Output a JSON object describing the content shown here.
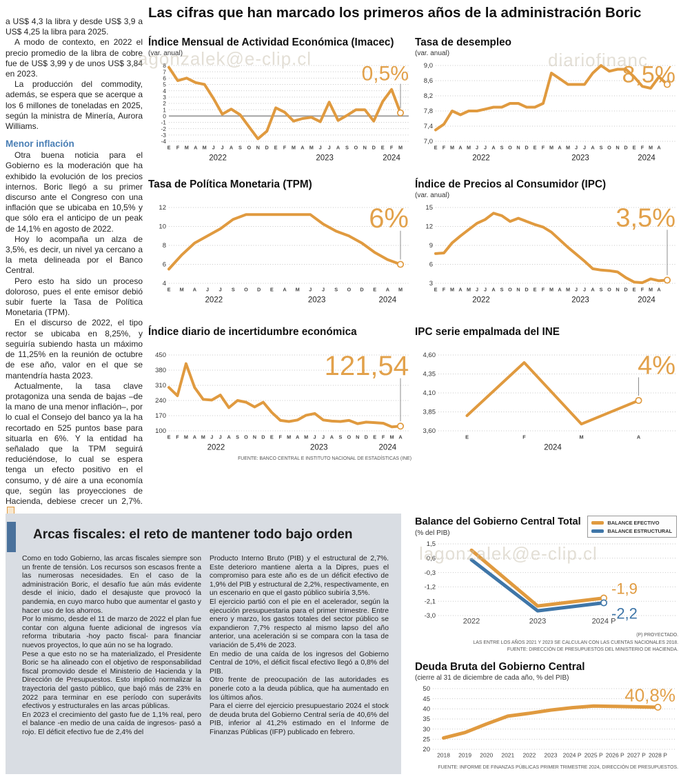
{
  "headline": "Las cifras que han marcado los primeros años de la administración Boric",
  "watermarks": [
    "agonzalek@e-clip.cl",
    "diariofinanc",
    "lagonzalek@e-clip.cl"
  ],
  "left_article": {
    "paragraphs": [
      "a US$ 4,3 la libra y desde US$ 3,9 a US$ 4,25 la libra para 2025.",
      "A modo de contexto, en 2022 el precio promedio de la libra de cobre fue de US$ 3,99 y de unos US$ 3,84 en 2023.",
      "La producción del commodity, además, se espera que se acerque a los 6 millones de toneladas en 2025, según la ministra de Minería, Aurora Williams."
    ],
    "subhead": "Menor inflación",
    "paragraphs2": [
      "Otra buena noticia para el Gobierno es la moderación que ha exhibido la evolución de los precios internos. Boric llegó a su primer discurso ante el Congreso con una inflación que se ubicaba en 10,5% y que sólo era el anticipo de un peak de 14,1% en agosto de 2022.",
      "Hoy lo acompaña un alza de 3,5%, es decir, un nivel ya cercano a la meta delineada por el Banco Central.",
      "Pero esto ha sido un proceso doloroso, pues el ente emisor debió subir fuerte la Tasa de Política Monetaria (TPM).",
      "En el discurso de 2022, el tipo rector se ubicaba en 8,25%, y seguiría subiendo hasta un máximo de 11,25% en la reunión de octubre de ese año, valor en el que se mantendría hasta 2023.",
      "Actualmente, la tasa clave protagoniza una senda de bajas –de la mano de una menor inflación–, por lo cual el Consejo del banco ya la ha recortado en 525 puntos base para situarla en 6%. Y la entidad ha señalado que la TPM seguirá reduciéndose, lo cual se espera tenga un efecto positivo en el consumo, y dé aire a una economía que, según las proyecciones de Hacienda, debiese crecer un 2,7%."
    ]
  },
  "fiscal": {
    "title": "Arcas fiscales: el reto de mantener todo bajo orden",
    "col1": [
      "Como en todo Gobierno, las arcas fiscales siempre son un frente de tensión. Los recursos son escasos frente a las numerosas necesidades. En el caso de la administración Boric, el desafío fue aún más evidente desde el inicio, dado el desajuste que provocó la pandemia, en cuyo marco hubo que aumentar el gasto y hacer uso de los ahorros.",
      "Por lo mismo, desde el 11 de marzo de 2022 el plan fue contar con alguna fuente adicional de ingresos vía reforma tributaria -hoy pacto fiscal- para financiar nuevos proyectos, lo que aún no se ha logrado.",
      "Pese a que esto no se ha materializado, el Presidente Boric se ha alineado con el objetivo de responsabilidad fiscal promovido desde el Ministerio de Hacienda y la Dirección de Presupuestos. Esto implicó normalizar la trayectoria del gasto público, que bajó más de 23% en 2022 para terminar en ese período con superávits efectivos y estructurales en las arcas públicas.",
      "En 2023 el crecimiento del gasto fue de 1,1% real, pero el balance -en medio de una caída de ingresos- pasó a rojo. El déficit efectivo fue de 2,4% del"
    ],
    "col2": [
      "Producto Interno Bruto (PIB) y el estructural de 2,7%. Este deterioro mantiene alerta a la Dipres, pues el compromiso para este año es de un déficit efectivo de 1,9% del PIB y estructural de 2,2%, respectivamente, en un escenario en que el gasto público subiría 3,5%.",
      "El ejercicio partió con el pie en el acelerador, según la ejecución presupuestaria para el primer trimestre. Entre enero y marzo, los gastos totales del sector público se expandieron 7,7% respecto al mismo lapso del año anterior, una aceleración si se compara con la tasa de variación de 5,4% de 2023.",
      "En medio de una caída de los ingresos del Gobierno Central de 10%, el déficit fiscal efectivo llegó a 0,8% del PIB.",
      "Otro frente de preocupación de las autoridades es ponerle coto a la deuda pública, que ha aumentado en los últimos años.",
      "Para el cierre del ejercicio presupuestario 2024 el stock de deuda bruta del Gobierno Central sería de 40,6% del PIB, inferior al 41,2% estimado en el Informe de Finanzas Públicas (IFP) publicado en febrero."
    ]
  },
  "colors": {
    "accent_orange": "#E09A3F",
    "accent_blue": "#3F76A8",
    "value_orange": "#E2A14B",
    "subhead_blue": "#4a7fb5"
  },
  "chart_data": [
    {
      "type": "line",
      "title": "Índice Mensual de Actividad Económica (Imacec)",
      "subtitle": "(var. anual)",
      "value": "0,5%",
      "ylim": [
        -4,
        8
      ],
      "yticks": [
        "8",
        "7",
        "6",
        "5",
        "4",
        "3",
        "2",
        "1",
        "0",
        "-1",
        "-2",
        "-3",
        "-4"
      ],
      "zero_line": true,
      "xlabels": [
        "E",
        "F",
        "M",
        "A",
        "M",
        "J",
        "J",
        "A",
        "S",
        "O",
        "N",
        "D",
        "E",
        "F",
        "M",
        "A",
        "M",
        "J",
        "J",
        "A",
        "S",
        "O",
        "N",
        "D",
        "E",
        "F",
        "M"
      ],
      "years": [
        {
          "label": "2022",
          "center": 5.5
        },
        {
          "label": "2023",
          "center": 17.5
        },
        {
          "label": "2024",
          "center": 25
        }
      ],
      "series": [
        {
          "name": "Imacec",
          "color": "#E09A3F",
          "values": [
            7.7,
            5.6,
            6.0,
            5.3,
            5.0,
            2.8,
            0.3,
            1.1,
            0.2,
            -1.7,
            -3.6,
            -2.4,
            1.3,
            0.6,
            -0.8,
            -0.4,
            -0.2,
            -0.9,
            2.2,
            -0.7,
            0.1,
            1.0,
            1.0,
            -0.8,
            2.3,
            4.2,
            0.5
          ]
        }
      ],
      "layout": {
        "vsize": 30,
        "ysize": 8.5
      }
    },
    {
      "type": "line",
      "title": "Tasa de desempleo",
      "subtitle": "(var. anual)",
      "value": "8,5%",
      "ylim": [
        7.0,
        9.0
      ],
      "yticks": [
        "9,0",
        "8,6",
        "8,2",
        "7,8",
        "7,4",
        "7,0"
      ],
      "xlabels": [
        "E",
        "F",
        "M",
        "A",
        "M",
        "J",
        "J",
        "A",
        "S",
        "O",
        "N",
        "D",
        "E",
        "F",
        "M",
        "A",
        "M",
        "J",
        "J",
        "A",
        "S",
        "O",
        "N",
        "D",
        "E",
        "F",
        "M",
        "A",
        ""
      ],
      "years": [
        {
          "label": "2022",
          "center": 5.5
        },
        {
          "label": "2023",
          "center": 17.5
        },
        {
          "label": "2024",
          "center": 25.5
        }
      ],
      "series": [
        {
          "name": "Tasa de desempleo",
          "color": "#E09A3F",
          "values": [
            7.3,
            7.45,
            7.8,
            7.7,
            7.8,
            7.8,
            7.85,
            7.9,
            7.9,
            8.0,
            8.0,
            7.9,
            7.9,
            8.0,
            8.8,
            8.65,
            8.5,
            8.5,
            8.5,
            8.8,
            9.0,
            8.85,
            8.9,
            8.9,
            8.7,
            8.45,
            8.4,
            8.7,
            8.5
          ]
        }
      ],
      "layout": {
        "vsize": 34
      }
    },
    {
      "type": "line",
      "title": "Tasa de Política Monetaria (TPM)",
      "subtitle": "",
      "value": "6%",
      "ylim": [
        4,
        12
      ],
      "yticks": [
        "12",
        "10",
        "8",
        "6",
        "4"
      ],
      "xlabels": [
        "E",
        "M",
        "A",
        "J",
        "J",
        "S",
        "O",
        "D",
        "E",
        "A",
        "M",
        "J",
        "J",
        "S",
        "O",
        "D",
        "E",
        "A",
        "M"
      ],
      "years": [
        {
          "label": "2022",
          "center": 3.5
        },
        {
          "label": "2023",
          "center": 11.5
        },
        {
          "label": "2024",
          "center": 17
        }
      ],
      "series": [
        {
          "name": "TPM",
          "color": "#E09A3F",
          "values": [
            5.5,
            7.0,
            8.25,
            9.0,
            9.75,
            10.75,
            11.25,
            11.25,
            11.25,
            11.25,
            11.25,
            11.25,
            10.25,
            9.5,
            9.0,
            8.25,
            7.25,
            6.5,
            6.0
          ]
        }
      ],
      "layout": {
        "vsize": 40
      }
    },
    {
      "type": "line",
      "title": "Índice de Precios al Consumidor (IPC)",
      "subtitle": "(var. anual)",
      "value": "3,5%",
      "ylim": [
        3,
        15
      ],
      "yticks": [
        "15",
        "12",
        "9",
        "6",
        "3"
      ],
      "xlabels": [
        "E",
        "F",
        "M",
        "A",
        "M",
        "J",
        "J",
        "A",
        "S",
        "O",
        "N",
        "D",
        "E",
        "F",
        "M",
        "A",
        "M",
        "J",
        "J",
        "A",
        "S",
        "O",
        "N",
        "D",
        "E",
        "F",
        "M",
        "A",
        ""
      ],
      "years": [
        {
          "label": "2022",
          "center": 5.5
        },
        {
          "label": "2023",
          "center": 17.5
        },
        {
          "label": "2024",
          "center": 25.5
        }
      ],
      "series": [
        {
          "name": "IPC",
          "color": "#E09A3F",
          "values": [
            7.7,
            7.8,
            9.4,
            10.5,
            11.5,
            12.5,
            13.1,
            14.1,
            13.7,
            12.8,
            13.3,
            12.8,
            12.3,
            11.9,
            11.1,
            9.9,
            8.7,
            7.6,
            6.5,
            5.3,
            5.1,
            5.0,
            4.8,
            3.9,
            3.2,
            3.1,
            3.7,
            3.4,
            3.5
          ]
        }
      ],
      "layout": {
        "vsize": 38
      }
    },
    {
      "type": "line",
      "title": "Índice diario de incertidumbre económica",
      "subtitle": "",
      "value": "121,54",
      "source": "FUENTE: BANCO CENTRAL E INSTITUTO NACIONAL DE ESTADÍSTICAS (INE)",
      "ylim": [
        100,
        450
      ],
      "yticks": [
        "450",
        "380",
        "310",
        "240",
        "170",
        "100"
      ],
      "xlabels": [
        "E",
        "F",
        "M",
        "A",
        "M",
        "J",
        "J",
        "A",
        "S",
        "O",
        "N",
        "D",
        "E",
        "F",
        "M",
        "A",
        "M",
        "J",
        "J",
        "A",
        "S",
        "O",
        "N",
        "D",
        "E",
        "F",
        "M",
        "A"
      ],
      "years": [
        {
          "label": "2022",
          "center": 5.5
        },
        {
          "label": "2023",
          "center": 17.5
        },
        {
          "label": "2024",
          "center": 25.5
        }
      ],
      "series": [
        {
          "name": "Incertidumbre económica",
          "color": "#E09A3F",
          "values": [
            300,
            262,
            410,
            300,
            245,
            242,
            265,
            207,
            240,
            232,
            210,
            232,
            185,
            148,
            143,
            150,
            172,
            180,
            150,
            145,
            143,
            148,
            133,
            140,
            138,
            135,
            118,
            121.54
          ]
        }
      ],
      "layout": {
        "vsize": 40
      }
    },
    {
      "type": "line",
      "title": "IPC serie empalmada del INE",
      "subtitle": "",
      "value": "4%",
      "ylim": [
        3.6,
        4.6
      ],
      "yticks": [
        "4,60",
        "4,35",
        "4,10",
        "3,85",
        "3,60"
      ],
      "xlabels": [
        "E",
        "F",
        "M",
        "A"
      ],
      "xmode": "center",
      "years": [
        {
          "label": "2024",
          "center": 1.5
        }
      ],
      "series": [
        {
          "name": "IPC empalmado",
          "color": "#E09A3F",
          "values": [
            3.8,
            4.5,
            3.69,
            4.0
          ]
        }
      ],
      "layout": {
        "vsize": 38,
        "ml": 34,
        "vx_pad": 0
      }
    },
    {
      "type": "line",
      "title": "Balance del Gobierno Central Total",
      "subtitle": "(% del PIB)",
      "ylim": [
        -3.0,
        1.5
      ],
      "yticks": [
        "1,5",
        "0,6",
        "-0,3",
        "-1,2",
        "-2,1",
        "-3,0"
      ],
      "xlabels": [
        "2022",
        "2023",
        "2024 P"
      ],
      "xmode": "center",
      "series": [
        {
          "name": "BALANCE EFECTIVO",
          "color": "#E09A3F",
          "values": [
            1.1,
            -2.4,
            -1.9
          ]
        },
        {
          "name": "BALANCE ESTRUCTURAL",
          "color": "#3F76A8",
          "values": [
            0.5,
            -2.7,
            -2.2
          ]
        }
      ],
      "end_labels": [
        {
          "text": "-1,9",
          "color": "#E09A3F",
          "at": -1.9,
          "dy": -6
        },
        {
          "text": "-2,2",
          "color": "#3F76A8",
          "at": -2.2,
          "dy": 23
        }
      ],
      "notes": [
        "(P) PROYECTADO.",
        "LAS ENTRE LOS AÑOS 2021 Y 2023 SE CALCULAN  CON LAS CUENTAS NACIONALES 2018.",
        "FUENTE: DIRECCIÓN DE PRESUPUESTOS DEL MINISTERIO DE HACIENDA."
      ],
      "layout": {
        "h": 130,
        "mt": 8,
        "mb": 18,
        "ml": 34,
        "mr": 58,
        "lw": 5,
        "xsize": 11,
        "xbold": false
      }
    },
    {
      "type": "line",
      "title": "Deuda Bruta del Gobierno Central",
      "subtitle": "(cierre al 31 de diciembre de cada año, % del PIB)",
      "value": "40,8%",
      "source": "FUENTE: INFORME DE FINANZAS PÚBLICAS PRIMER TRIMESTRE 2024, DIRECCIÓN DE PRESUPUESTOS.",
      "ylim": [
        20,
        50
      ],
      "yticks": [
        "50",
        "45",
        "40",
        "35",
        "30",
        "25",
        "20"
      ],
      "xlabels": [
        "2018",
        "2019",
        "2020",
        "2021",
        "2022",
        "2023",
        "2024 P",
        "2025 P",
        "2026 P",
        "2027 P",
        "2028 P"
      ],
      "xmode": "center",
      "series": [
        {
          "name": "Deuda bruta",
          "color": "#E09A3F",
          "values": [
            25.6,
            28.3,
            32.5,
            36.4,
            37.8,
            39.4,
            40.6,
            41.4,
            41.2,
            41.0,
            40.8
          ]
        }
      ],
      "layout": {
        "h": 112,
        "mt": 8,
        "mb": 16,
        "ml": 26,
        "mr": 12,
        "lw": 5,
        "xsize": 8.5,
        "xbold": false,
        "vsize": 26,
        "connector": false
      }
    }
  ]
}
